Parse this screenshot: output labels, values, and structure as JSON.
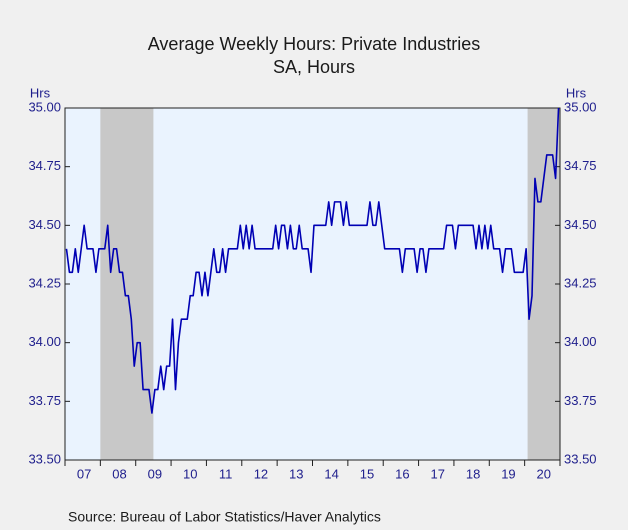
{
  "chart_data": {
    "type": "line",
    "title": "Average Weekly Hours: Private Industries",
    "subtitle": "SA, Hours",
    "ylabel": "Hrs",
    "y2label": "Hrs",
    "source": "Source:  Bureau of Labor Statistics/Haver Analytics",
    "categories": [
      null,
      null,
      null,
      null,
      null,
      null,
      "07",
      null,
      null,
      null,
      null,
      null,
      null,
      null,
      null,
      null,
      null,
      null,
      "08",
      null,
      null,
      null,
      null,
      null,
      null,
      null,
      null,
      null,
      null,
      null,
      "09",
      null,
      null,
      null,
      null,
      null,
      null,
      null,
      null,
      null,
      null,
      null,
      "10",
      null,
      null,
      null,
      null,
      null,
      null,
      null,
      null,
      null,
      null,
      null,
      "11",
      null,
      null,
      null,
      null,
      null,
      null,
      null,
      null,
      null,
      null,
      null,
      "12",
      null,
      null,
      null,
      null,
      null,
      null,
      null,
      null,
      null,
      null,
      null,
      "13",
      null,
      null,
      null,
      null,
      null,
      null,
      null,
      null,
      null,
      null,
      null,
      "14",
      null,
      null,
      null,
      null,
      null,
      null,
      null,
      null,
      null,
      null,
      null,
      "15",
      null,
      null,
      null,
      null,
      null,
      null,
      null,
      null,
      null,
      null,
      null,
      "16",
      null,
      null,
      null,
      null,
      null,
      null,
      null,
      null,
      null,
      null,
      null,
      "17",
      null,
      null,
      null,
      null,
      null,
      null,
      null,
      null,
      null,
      null,
      null,
      "18",
      null,
      null,
      null,
      null,
      null,
      null,
      null,
      null,
      null,
      null,
      null,
      "19",
      null,
      null,
      null,
      null,
      null,
      null,
      null,
      null,
      null,
      null,
      null,
      "20",
      null,
      null,
      null,
      null,
      null
    ],
    "series": [
      {
        "color": "#0000b4",
        "values": [
          34.4,
          34.3,
          34.3,
          34.4,
          34.3,
          34.4,
          34.5,
          34.4,
          34.4,
          34.4,
          34.3,
          34.4,
          34.4,
          34.4,
          34.5,
          34.3,
          34.4,
          34.4,
          34.3,
          34.3,
          34.2,
          34.2,
          34.1,
          33.9,
          34.0,
          34.0,
          33.8,
          33.8,
          33.8,
          33.7,
          33.8,
          33.8,
          33.9,
          33.8,
          33.9,
          33.9,
          34.1,
          33.8,
          34.0,
          34.1,
          34.1,
          34.1,
          34.2,
          34.2,
          34.3,
          34.3,
          34.2,
          34.3,
          34.2,
          34.3,
          34.4,
          34.3,
          34.3,
          34.4,
          34.3,
          34.4,
          34.4,
          34.4,
          34.4,
          34.5,
          34.4,
          34.5,
          34.4,
          34.5,
          34.4,
          34.4,
          34.4,
          34.4,
          34.4,
          34.4,
          34.4,
          34.5,
          34.4,
          34.5,
          34.5,
          34.4,
          34.5,
          34.4,
          34.4,
          34.5,
          34.4,
          34.4,
          34.4,
          34.3,
          34.5,
          34.5,
          34.5,
          34.5,
          34.5,
          34.6,
          34.5,
          34.6,
          34.6,
          34.6,
          34.5,
          34.6,
          34.5,
          34.5,
          34.5,
          34.5,
          34.5,
          34.5,
          34.5,
          34.6,
          34.5,
          34.5,
          34.6,
          34.5,
          34.4,
          34.4,
          34.4,
          34.4,
          34.4,
          34.4,
          34.3,
          34.4,
          34.4,
          34.4,
          34.4,
          34.3,
          34.4,
          34.4,
          34.3,
          34.4,
          34.4,
          34.4,
          34.4,
          34.4,
          34.4,
          34.5,
          34.5,
          34.5,
          34.4,
          34.5,
          34.5,
          34.5,
          34.5,
          34.5,
          34.5,
          34.4,
          34.5,
          34.4,
          34.5,
          34.4,
          34.5,
          34.4,
          34.4,
          34.4,
          34.3,
          34.4,
          34.4,
          34.4,
          34.3,
          34.3,
          34.3,
          34.3,
          34.4,
          34.1,
          34.2,
          34.7,
          34.6,
          34.6,
          34.7,
          34.8,
          34.8,
          34.8,
          34.7,
          35.0
        ]
      }
    ],
    "shading": [
      [
        12,
        29
      ],
      [
        157,
        167
      ]
    ],
    "ylim": [
      33.5,
      35.0
    ],
    "yticks": [
      {
        "value": 33.5,
        "label": "33.50"
      },
      {
        "value": 33.75,
        "label": "33.75"
      },
      {
        "value": 34.0,
        "label": "34.00"
      },
      {
        "value": 34.25,
        "label": "34.25"
      },
      {
        "value": 34.5,
        "label": "34.50"
      },
      {
        "value": 34.75,
        "label": "34.75"
      },
      {
        "value": 35.0,
        "label": "35.00"
      }
    ],
    "y2lim": [
      33.5,
      35.0
    ],
    "y2ticks": [
      {
        "value": 33.5,
        "label": "33.50"
      },
      {
        "value": 33.75,
        "label": "33.75"
      },
      {
        "value": 34.0,
        "label": "34.00"
      },
      {
        "value": 34.25,
        "label": "34.25"
      },
      {
        "value": 34.5,
        "label": "34.50"
      },
      {
        "value": 34.75,
        "label": "34.75"
      },
      {
        "value": 35.0,
        "label": "35.00"
      }
    ]
  }
}
